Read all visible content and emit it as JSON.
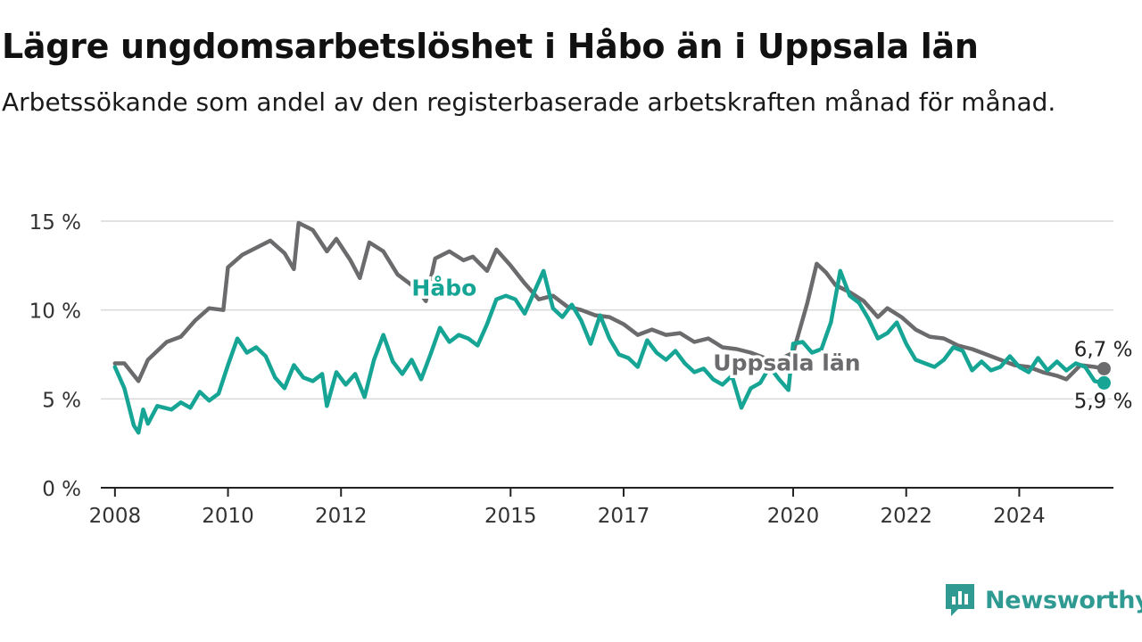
{
  "title": "Lägre ungdomsarbetslöshet i Håbo än i Uppsala län",
  "subtitle": "Arbetssökande som andel av den registerbaserade arbetskraften månad för månad.",
  "brand": {
    "name": "Newsworthy",
    "icon": "newsworthy-logo-icon",
    "color": "#2f9a92"
  },
  "chart_data": {
    "type": "line",
    "ylim": [
      0,
      15
    ],
    "yticks": [
      0,
      5,
      10,
      15
    ],
    "ytick_labels": [
      "0 %",
      "5 %",
      "10 %",
      "15 %"
    ],
    "xlim": [
      "2007-10",
      "2025-09"
    ],
    "xticks": [
      "2008",
      "2010",
      "2012",
      "2015",
      "2017",
      "2020",
      "2022",
      "2024"
    ],
    "grid": true,
    "series": [
      {
        "name": "Uppsala län",
        "color": "#6b6b6d",
        "end_label": "6,7 %",
        "points": [
          [
            "2008-01",
            7.0
          ],
          [
            "2008-03",
            7.0
          ],
          [
            "2008-06",
            6.0
          ],
          [
            "2008-08",
            7.2
          ],
          [
            "2008-12",
            8.2
          ],
          [
            "2009-03",
            8.5
          ],
          [
            "2009-06",
            9.4
          ],
          [
            "2009-09",
            10.1
          ],
          [
            "2009-12",
            10.0
          ],
          [
            "2010-01",
            12.4
          ],
          [
            "2010-04",
            13.1
          ],
          [
            "2010-07",
            13.5
          ],
          [
            "2010-10",
            13.9
          ],
          [
            "2011-01",
            13.2
          ],
          [
            "2011-03",
            12.3
          ],
          [
            "2011-04",
            14.9
          ],
          [
            "2011-07",
            14.5
          ],
          [
            "2011-10",
            13.3
          ],
          [
            "2011-12",
            14.0
          ],
          [
            "2012-03",
            12.8
          ],
          [
            "2012-05",
            11.8
          ],
          [
            "2012-07",
            13.8
          ],
          [
            "2012-10",
            13.3
          ],
          [
            "2013-01",
            12.0
          ],
          [
            "2013-05",
            11.2
          ],
          [
            "2013-07",
            10.5
          ],
          [
            "2013-09",
            12.9
          ],
          [
            "2013-12",
            13.3
          ],
          [
            "2014-03",
            12.8
          ],
          [
            "2014-05",
            13.0
          ],
          [
            "2014-08",
            12.2
          ],
          [
            "2014-10",
            13.4
          ],
          [
            "2015-01",
            12.5
          ],
          [
            "2015-04",
            11.5
          ],
          [
            "2015-07",
            10.6
          ],
          [
            "2015-10",
            10.8
          ],
          [
            "2016-01",
            10.2
          ],
          [
            "2016-04",
            10.0
          ],
          [
            "2016-07",
            9.7
          ],
          [
            "2016-10",
            9.6
          ],
          [
            "2017-01",
            9.2
          ],
          [
            "2017-04",
            8.6
          ],
          [
            "2017-07",
            8.9
          ],
          [
            "2017-10",
            8.6
          ],
          [
            "2018-01",
            8.7
          ],
          [
            "2018-04",
            8.2
          ],
          [
            "2018-07",
            8.4
          ],
          [
            "2018-10",
            7.9
          ],
          [
            "2019-01",
            7.8
          ],
          [
            "2019-04",
            7.6
          ],
          [
            "2019-07",
            7.3
          ],
          [
            "2019-10",
            7.2
          ],
          [
            "2020-01",
            7.6
          ],
          [
            "2020-04",
            10.4
          ],
          [
            "2020-06",
            12.6
          ],
          [
            "2020-08",
            12.1
          ],
          [
            "2020-10",
            11.4
          ],
          [
            "2021-01",
            11.0
          ],
          [
            "2021-04",
            10.5
          ],
          [
            "2021-07",
            9.6
          ],
          [
            "2021-09",
            10.1
          ],
          [
            "2021-12",
            9.6
          ],
          [
            "2022-03",
            8.9
          ],
          [
            "2022-06",
            8.5
          ],
          [
            "2022-09",
            8.4
          ],
          [
            "2022-12",
            8.0
          ],
          [
            "2023-03",
            7.8
          ],
          [
            "2023-06",
            7.5
          ],
          [
            "2023-09",
            7.2
          ],
          [
            "2023-12",
            6.9
          ],
          [
            "2024-03",
            6.8
          ],
          [
            "2024-06",
            6.5
          ],
          [
            "2024-09",
            6.3
          ],
          [
            "2024-11",
            6.1
          ],
          [
            "2025-02",
            6.9
          ],
          [
            "2025-05",
            6.8
          ],
          [
            "2025-07",
            6.7
          ]
        ]
      },
      {
        "name": "Håbo",
        "color": "#16a595",
        "end_label": "5,9 %",
        "points": [
          [
            "2008-01",
            6.8
          ],
          [
            "2008-03",
            5.6
          ],
          [
            "2008-05",
            3.5
          ],
          [
            "2008-06",
            3.1
          ],
          [
            "2008-07",
            4.4
          ],
          [
            "2008-08",
            3.6
          ],
          [
            "2008-10",
            4.6
          ],
          [
            "2009-01",
            4.4
          ],
          [
            "2009-03",
            4.8
          ],
          [
            "2009-05",
            4.5
          ],
          [
            "2009-07",
            5.4
          ],
          [
            "2009-09",
            4.9
          ],
          [
            "2009-11",
            5.3
          ],
          [
            "2010-01",
            6.9
          ],
          [
            "2010-03",
            8.4
          ],
          [
            "2010-05",
            7.6
          ],
          [
            "2010-07",
            7.9
          ],
          [
            "2010-09",
            7.4
          ],
          [
            "2010-11",
            6.2
          ],
          [
            "2011-01",
            5.6
          ],
          [
            "2011-03",
            6.9
          ],
          [
            "2011-05",
            6.2
          ],
          [
            "2011-07",
            6.0
          ],
          [
            "2011-09",
            6.4
          ],
          [
            "2011-10",
            4.6
          ],
          [
            "2011-12",
            6.5
          ],
          [
            "2012-02",
            5.8
          ],
          [
            "2012-04",
            6.4
          ],
          [
            "2012-06",
            5.1
          ],
          [
            "2012-08",
            7.2
          ],
          [
            "2012-10",
            8.6
          ],
          [
            "2012-12",
            7.1
          ],
          [
            "2013-02",
            6.4
          ],
          [
            "2013-04",
            7.2
          ],
          [
            "2013-06",
            6.1
          ],
          [
            "2013-08",
            7.5
          ],
          [
            "2013-10",
            9.0
          ],
          [
            "2013-12",
            8.2
          ],
          [
            "2014-02",
            8.6
          ],
          [
            "2014-04",
            8.4
          ],
          [
            "2014-06",
            8.0
          ],
          [
            "2014-08",
            9.2
          ],
          [
            "2014-10",
            10.6
          ],
          [
            "2014-12",
            10.8
          ],
          [
            "2015-02",
            10.6
          ],
          [
            "2015-04",
            9.8
          ],
          [
            "2015-06",
            11.0
          ],
          [
            "2015-08",
            12.2
          ],
          [
            "2015-10",
            10.1
          ],
          [
            "2015-12",
            9.6
          ],
          [
            "2016-02",
            10.3
          ],
          [
            "2016-04",
            9.4
          ],
          [
            "2016-06",
            8.1
          ],
          [
            "2016-08",
            9.7
          ],
          [
            "2016-10",
            8.4
          ],
          [
            "2016-12",
            7.5
          ],
          [
            "2017-02",
            7.3
          ],
          [
            "2017-04",
            6.8
          ],
          [
            "2017-06",
            8.3
          ],
          [
            "2017-08",
            7.6
          ],
          [
            "2017-10",
            7.2
          ],
          [
            "2017-12",
            7.7
          ],
          [
            "2018-02",
            7.0
          ],
          [
            "2018-04",
            6.5
          ],
          [
            "2018-06",
            6.7
          ],
          [
            "2018-08",
            6.1
          ],
          [
            "2018-10",
            5.8
          ],
          [
            "2018-12",
            6.3
          ],
          [
            "2019-02",
            4.5
          ],
          [
            "2019-04",
            5.6
          ],
          [
            "2019-06",
            5.9
          ],
          [
            "2019-08",
            6.8
          ],
          [
            "2019-10",
            6.1
          ],
          [
            "2019-12",
            5.5
          ],
          [
            "2020-01",
            8.1
          ],
          [
            "2020-03",
            8.2
          ],
          [
            "2020-05",
            7.6
          ],
          [
            "2020-07",
            7.8
          ],
          [
            "2020-09",
            9.3
          ],
          [
            "2020-11",
            12.2
          ],
          [
            "2021-01",
            10.8
          ],
          [
            "2021-03",
            10.4
          ],
          [
            "2021-05",
            9.5
          ],
          [
            "2021-07",
            8.4
          ],
          [
            "2021-09",
            8.7
          ],
          [
            "2021-11",
            9.3
          ],
          [
            "2022-01",
            8.1
          ],
          [
            "2022-03",
            7.2
          ],
          [
            "2022-05",
            7.0
          ],
          [
            "2022-07",
            6.8
          ],
          [
            "2022-09",
            7.2
          ],
          [
            "2022-11",
            7.9
          ],
          [
            "2023-01",
            7.7
          ],
          [
            "2023-03",
            6.6
          ],
          [
            "2023-05",
            7.1
          ],
          [
            "2023-07",
            6.6
          ],
          [
            "2023-09",
            6.8
          ],
          [
            "2023-11",
            7.4
          ],
          [
            "2024-01",
            6.8
          ],
          [
            "2024-03",
            6.5
          ],
          [
            "2024-05",
            7.3
          ],
          [
            "2024-07",
            6.6
          ],
          [
            "2024-09",
            7.1
          ],
          [
            "2024-11",
            6.6
          ],
          [
            "2025-01",
            7.0
          ],
          [
            "2025-03",
            6.8
          ],
          [
            "2025-05",
            6.0
          ],
          [
            "2025-07",
            5.9
          ]
        ]
      }
    ]
  }
}
